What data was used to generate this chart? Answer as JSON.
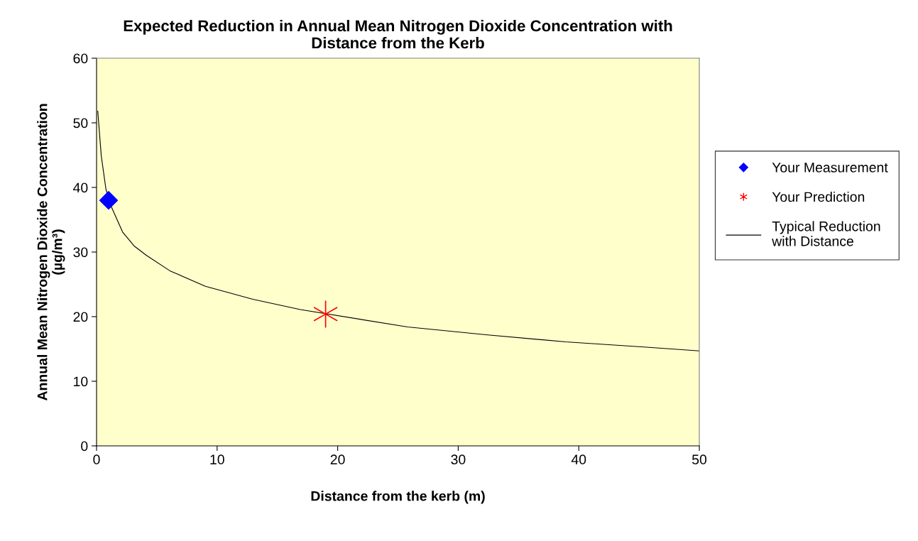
{
  "chart_data": {
    "type": "scatter",
    "title": "Expected Reduction in Annual Mean Nitrogen Dioxide Concentration with\nDistance from the Kerb",
    "xlabel": "Distance from the kerb (m)",
    "ylabel": "Annual Mean Nitrogen Dioxide Concentration\n(µg/m³)",
    "xlim": [
      0,
      50
    ],
    "xticks": [
      0,
      10,
      20,
      30,
      40,
      50
    ],
    "ylim": [
      0,
      60
    ],
    "yticks": [
      0,
      10,
      20,
      30,
      40,
      50,
      60
    ],
    "grid": false,
    "legend": "right",
    "series": [
      {
        "name": "Your Measurement",
        "marker": "diamond",
        "color": "#0000ff",
        "x": [
          1
        ],
        "values": [
          38.0
        ]
      },
      {
        "name": "Your Prediction",
        "marker": "cross",
        "color": "#ff0000",
        "x": [
          19
        ],
        "values": [
          20.4
        ]
      },
      {
        "name": "Typical Reduction\nwith Distance",
        "type": "line",
        "marker": "none",
        "line_style": "solid",
        "color": "#000000",
        "x": [
          0.1,
          0.39,
          0.78,
          1.18,
          2.16,
          3.14,
          4.12,
          6.08,
          9.03,
          12.96,
          16.9,
          25.8,
          32.3,
          38.9,
          45.4,
          50
        ],
        "values": [
          51.8,
          44.9,
          39.7,
          37.2,
          33.1,
          30.9,
          29.5,
          27.1,
          24.7,
          22.7,
          21.1,
          18.4,
          17.2,
          16.1,
          15.3,
          14.7
        ]
      }
    ]
  }
}
